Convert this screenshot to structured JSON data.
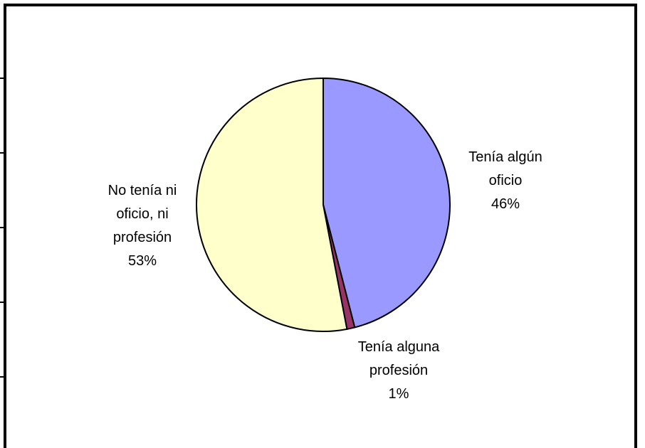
{
  "chart_data": {
    "type": "pie",
    "categories": [
      "Tenía algún oficio",
      "Tenía alguna profesión",
      "No tenía ni oficio, ni profesión"
    ],
    "values": [
      46,
      1,
      53
    ],
    "value_labels": [
      "46%",
      "1%",
      "53%"
    ],
    "colors": [
      "#9999ff",
      "#993366",
      "#ffffcc"
    ]
  }
}
